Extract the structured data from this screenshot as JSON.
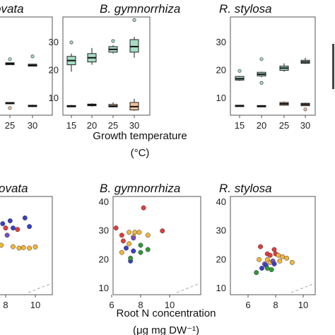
{
  "figure": {
    "top_xlabel": "Growth temperature",
    "top_xunit": "(°C)",
    "bottom_xlabel": "Root N concentration",
    "bottom_xunit": "(μg mg DW⁻¹)"
  },
  "colors": {
    "box_high": "#a6ddc5",
    "box_low": "#f2c19c",
    "frame": "#555555",
    "ref_line": "#aaaaaa"
  },
  "chart_data": [
    {
      "type": "box",
      "panel": "top-left",
      "title": "R. apiculata / ovata (title partially cropped: \"ovata\")",
      "title_text": "ovata",
      "x_ticks": [
        "25",
        "30"
      ],
      "ylim": [
        5,
        40
      ],
      "series": [
        {
          "group": "high",
          "boxes": [
            {
              "x": "25",
              "q1": 22.0,
              "median": 22.4,
              "q3": 22.7,
              "whisker_low": 22.0,
              "whisker_high": 22.8,
              "outliers": [
                24.0
              ]
            },
            {
              "x": "30",
              "q1": 21.5,
              "median": 21.8,
              "q3": 22.2,
              "whisker_low": 21.4,
              "whisker_high": 22.3,
              "outliers": [
                25.0
              ]
            }
          ]
        },
        {
          "group": "low",
          "boxes": [
            {
              "x": "25",
              "q1": 8.0,
              "median": 8.2,
              "q3": 8.5,
              "whisker_low": 7.9,
              "whisker_high": 8.6,
              "outliers": [
                6.5
              ]
            },
            {
              "x": "30",
              "q1": 7.0,
              "median": 7.2,
              "q3": 7.5,
              "whisker_low": 6.8,
              "whisker_high": 7.7,
              "outliers": []
            }
          ]
        }
      ]
    },
    {
      "type": "box",
      "panel": "top-middle",
      "title": "B. gymnorrhiza",
      "x_ticks": [
        "15",
        "20",
        "25",
        "30"
      ],
      "y_ticks": [
        "10",
        "20",
        "30"
      ],
      "ylim": [
        5,
        40
      ],
      "series": [
        {
          "group": "high",
          "boxes": [
            {
              "x": "15",
              "q1": 22.0,
              "median": 23.5,
              "q3": 25.0,
              "whisker_low": 19.5,
              "whisker_high": 26.0,
              "outliers": [
                30.0
              ]
            },
            {
              "x": "20",
              "q1": 23.0,
              "median": 24.5,
              "q3": 26.0,
              "whisker_low": 22.0,
              "whisker_high": 28.0,
              "outliers": []
            },
            {
              "x": "25",
              "q1": 26.5,
              "median": 27.5,
              "q3": 28.5,
              "whisker_low": 26.0,
              "whisker_high": 29.0,
              "outliers": [
                30.5
              ]
            },
            {
              "x": "30",
              "q1": 26.5,
              "median": 28.5,
              "q3": 31.0,
              "whisker_low": 24.5,
              "whisker_high": 32.0,
              "outliers": [
                38.0
              ]
            }
          ]
        },
        {
          "group": "low",
          "boxes": [
            {
              "x": "15",
              "q1": 7.0,
              "median": 7.2,
              "q3": 7.4,
              "whisker_low": 6.9,
              "whisker_high": 7.6,
              "outliers": []
            },
            {
              "x": "20",
              "q1": 7.3,
              "median": 7.6,
              "q3": 7.9,
              "whisker_low": 7.0,
              "whisker_high": 8.2,
              "outliers": []
            },
            {
              "x": "25",
              "q1": 6.9,
              "median": 7.2,
              "q3": 7.8,
              "whisker_low": 6.7,
              "whisker_high": 8.5,
              "outliers": []
            },
            {
              "x": "30",
              "q1": 5.8,
              "median": 7.0,
              "q3": 8.5,
              "whisker_low": 5.5,
              "whisker_high": 9.8,
              "outliers": []
            }
          ]
        }
      ]
    },
    {
      "type": "box",
      "panel": "top-right",
      "title": "R. stylosa",
      "x_ticks": [
        "15",
        "20",
        "25",
        "30"
      ],
      "y_ticks": [
        "10",
        "20",
        "30"
      ],
      "ylim": [
        5,
        40
      ],
      "series": [
        {
          "group": "high",
          "boxes": [
            {
              "x": "15",
              "q1": 16.5,
              "median": 17.0,
              "q3": 17.8,
              "whisker_low": 16.2,
              "whisker_high": 18.0,
              "outliers": [
                19.8
              ]
            },
            {
              "x": "20",
              "q1": 18.0,
              "median": 18.6,
              "q3": 19.3,
              "whisker_low": 17.5,
              "whisker_high": 19.5,
              "outliers": [
                24.0,
                15.5
              ]
            },
            {
              "x": "25",
              "q1": 20.0,
              "median": 20.8,
              "q3": 21.5,
              "whisker_low": 19.5,
              "whisker_high": 22.5,
              "outliers": []
            },
            {
              "x": "30",
              "q1": 22.5,
              "median": 23.0,
              "q3": 23.6,
              "whisker_low": 22.3,
              "whisker_high": 24.5,
              "outliers": []
            }
          ]
        },
        {
          "group": "low",
          "boxes": [
            {
              "x": "15",
              "q1": 7.2,
              "median": 7.3,
              "q3": 7.5,
              "whisker_low": 7.1,
              "whisker_high": 7.6,
              "outliers": []
            },
            {
              "x": "20",
              "q1": 7.0,
              "median": 7.2,
              "q3": 7.4,
              "whisker_low": 6.9,
              "whisker_high": 7.5,
              "outliers": []
            },
            {
              "x": "25",
              "q1": 7.5,
              "median": 8.0,
              "q3": 8.5,
              "whisker_low": 7.3,
              "whisker_high": 8.8,
              "outliers": []
            },
            {
              "x": "30",
              "q1": 7.3,
              "median": 7.8,
              "q3": 8.2,
              "whisker_low": 7.2,
              "whisker_high": 8.4,
              "outliers": [
                6.0
              ]
            }
          ]
        }
      ]
    },
    {
      "type": "scatter",
      "panel": "bottom-left",
      "title_text": "ovata",
      "x_ticks": [
        "8",
        "10"
      ],
      "xlim": [
        5,
        11
      ],
      "ylim": [
        8,
        42
      ],
      "reference_line": true,
      "points": [
        {
          "x": 7.8,
          "y": 32.5,
          "color": "#3a3fc7"
        },
        {
          "x": 8.3,
          "y": 33.5,
          "color": "#3a3fc7"
        },
        {
          "x": 8.5,
          "y": 31.0,
          "color": "#3a3fc7"
        },
        {
          "x": 9.3,
          "y": 34.5,
          "color": "#3a3fc7"
        },
        {
          "x": 9.6,
          "y": 31.5,
          "color": "#3a3fc7"
        },
        {
          "x": 8.1,
          "y": 28.5,
          "color": "#7b4bc4"
        },
        {
          "x": 8.0,
          "y": 31.0,
          "color": "#e23c3c"
        },
        {
          "x": 8.8,
          "y": 30.5,
          "color": "#e23c3c"
        },
        {
          "x": 7.7,
          "y": 25.0,
          "color": "#f2b53c"
        },
        {
          "x": 8.5,
          "y": 24.5,
          "color": "#f2b53c"
        },
        {
          "x": 8.9,
          "y": 24.0,
          "color": "#f2b53c"
        },
        {
          "x": 9.2,
          "y": 24.2,
          "color": "#f2b53c"
        },
        {
          "x": 9.6,
          "y": 24.0,
          "color": "#f2b53c"
        },
        {
          "x": 10.0,
          "y": 24.4,
          "color": "#f2b53c"
        }
      ]
    },
    {
      "type": "scatter",
      "panel": "bottom-middle",
      "title": "B. gymnorrhiza",
      "x_ticks": [
        "6",
        "8",
        "10"
      ],
      "y_ticks": [
        "10",
        "20",
        "30",
        "40"
      ],
      "xlim": [
        4.8,
        10.8
      ],
      "ylim": [
        8,
        42
      ],
      "reference_line": true,
      "points": [
        {
          "x": 6.3,
          "y": 31.0,
          "color": "#e23c3c"
        },
        {
          "x": 6.8,
          "y": 26.5,
          "color": "#e23c3c"
        },
        {
          "x": 8.2,
          "y": 38.0,
          "color": "#e23c3c"
        },
        {
          "x": 9.5,
          "y": 30.0,
          "color": "#e23c3c"
        },
        {
          "x": 6.7,
          "y": 28.5,
          "color": "#e23c3c"
        },
        {
          "x": 7.2,
          "y": 29.5,
          "color": "#f2b53c"
        },
        {
          "x": 7.6,
          "y": 29.5,
          "color": "#f2b53c"
        },
        {
          "x": 7.9,
          "y": 29.5,
          "color": "#f2b53c"
        },
        {
          "x": 8.5,
          "y": 28.5,
          "color": "#f2b53c"
        },
        {
          "x": 7.2,
          "y": 25.5,
          "color": "#f2b53c"
        },
        {
          "x": 7.5,
          "y": 28.0,
          "color": "#f2b53c"
        },
        {
          "x": 6.7,
          "y": 22.5,
          "color": "#f2b53c"
        },
        {
          "x": 7.5,
          "y": 23.0,
          "color": "#f2b53c"
        },
        {
          "x": 7.5,
          "y": 27.5,
          "color": "#7b4bc4"
        },
        {
          "x": 7.0,
          "y": 24.0,
          "color": "#3a3fc7"
        },
        {
          "x": 7.5,
          "y": 23.0,
          "color": "#3a3fc7"
        },
        {
          "x": 7.3,
          "y": 19.5,
          "color": "#3a3fc7"
        },
        {
          "x": 8.0,
          "y": 25.0,
          "color": "#2e9a3a"
        },
        {
          "x": 8.0,
          "y": 22.5,
          "color": "#2e9a3a"
        },
        {
          "x": 8.5,
          "y": 23.5,
          "color": "#2e9a3a"
        },
        {
          "x": 7.3,
          "y": 20.5,
          "color": "#2e9a3a"
        }
      ]
    },
    {
      "type": "scatter",
      "panel": "bottom-right",
      "title": "R. stylosa",
      "x_ticks": [
        "6",
        "8",
        "10"
      ],
      "y_ticks": [
        "10",
        "20",
        "30",
        "40"
      ],
      "xlim": [
        4.8,
        10.8
      ],
      "ylim": [
        8,
        42
      ],
      "reference_line": true,
      "points": [
        {
          "x": 6.9,
          "y": 24.5,
          "color": "#e23c3c"
        },
        {
          "x": 7.9,
          "y": 23.5,
          "color": "#e23c3c"
        },
        {
          "x": 8.0,
          "y": 22.0,
          "color": "#e23c3c"
        },
        {
          "x": 7.4,
          "y": 22.0,
          "color": "#e23c3c"
        },
        {
          "x": 7.6,
          "y": 21.5,
          "color": "#e23c3c"
        },
        {
          "x": 7.4,
          "y": 20.0,
          "color": "#f2b53c"
        },
        {
          "x": 8.2,
          "y": 21.5,
          "color": "#f2b53c"
        },
        {
          "x": 8.5,
          "y": 21.0,
          "color": "#f2b53c"
        },
        {
          "x": 8.8,
          "y": 20.5,
          "color": "#f2b53c"
        },
        {
          "x": 8.3,
          "y": 19.5,
          "color": "#f2b53c"
        },
        {
          "x": 9.2,
          "y": 19.0,
          "color": "#f2b53c"
        },
        {
          "x": 6.8,
          "y": 20.0,
          "color": "#f2b53c"
        },
        {
          "x": 7.6,
          "y": 19.0,
          "color": "#f2b53c"
        },
        {
          "x": 7.2,
          "y": 18.5,
          "color": "#7b4bc4"
        },
        {
          "x": 7.8,
          "y": 19.5,
          "color": "#7b4bc4"
        },
        {
          "x": 7.3,
          "y": 18.0,
          "color": "#3a3fc7"
        },
        {
          "x": 7.9,
          "y": 18.5,
          "color": "#3a3fc7"
        },
        {
          "x": 7.0,
          "y": 17.0,
          "color": "#3a3fc7"
        },
        {
          "x": 6.6,
          "y": 15.5,
          "color": "#2e9a3a"
        },
        {
          "x": 7.4,
          "y": 17.0,
          "color": "#2e9a3a"
        },
        {
          "x": 7.7,
          "y": 16.5,
          "color": "#2e9a3a"
        }
      ]
    }
  ]
}
